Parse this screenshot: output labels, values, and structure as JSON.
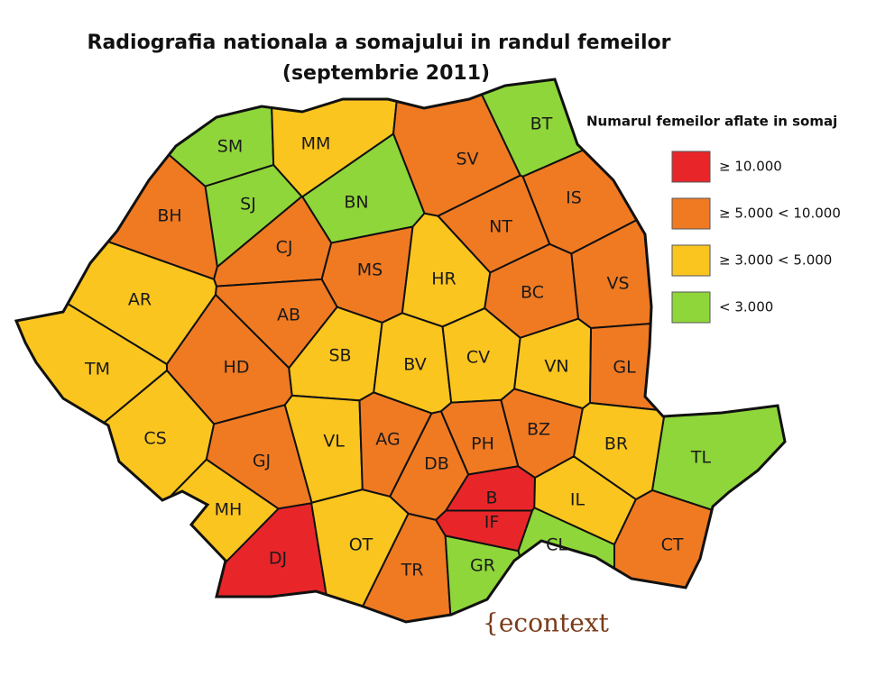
{
  "title": "Radiografia nationala a somajului in randul femeilor",
  "subtitle": "(septembrie 2011)",
  "legend": {
    "title": "Numarul femeilor aflate in somaj",
    "items": [
      {
        "label": "≥ 10.000",
        "color": "#e8262a"
      },
      {
        "label": "≥ 5.000 < 10.000",
        "color": "#f07a22"
      },
      {
        "label": "≥ 3.000 < 5.000",
        "color": "#fbc51f"
      },
      {
        "label": "< 3.000",
        "color": "#8fd63a"
      }
    ]
  },
  "counties": [
    {
      "code": "SM",
      "level": 3
    },
    {
      "code": "MM",
      "level": 2
    },
    {
      "code": "BT",
      "level": 3
    },
    {
      "code": "SV",
      "level": 1
    },
    {
      "code": "SJ",
      "level": 3
    },
    {
      "code": "BN",
      "level": 3
    },
    {
      "code": "BH",
      "level": 1
    },
    {
      "code": "CJ",
      "level": 1
    },
    {
      "code": "NT",
      "level": 1
    },
    {
      "code": "IS",
      "level": 1
    },
    {
      "code": "MS",
      "level": 1
    },
    {
      "code": "HR",
      "level": 2
    },
    {
      "code": "BC",
      "level": 1
    },
    {
      "code": "VS",
      "level": 1
    },
    {
      "code": "AR",
      "level": 2
    },
    {
      "code": "AB",
      "level": 1
    },
    {
      "code": "TM",
      "level": 2
    },
    {
      "code": "HD",
      "level": 1
    },
    {
      "code": "SB",
      "level": 2
    },
    {
      "code": "BV",
      "level": 2
    },
    {
      "code": "CV",
      "level": 2
    },
    {
      "code": "VN",
      "level": 2
    },
    {
      "code": "GL",
      "level": 1
    },
    {
      "code": "CS",
      "level": 2
    },
    {
      "code": "GJ",
      "level": 1
    },
    {
      "code": "VL",
      "level": 2
    },
    {
      "code": "AG",
      "level": 1
    },
    {
      "code": "DB",
      "level": 1
    },
    {
      "code": "PH",
      "level": 1
    },
    {
      "code": "BZ",
      "level": 1
    },
    {
      "code": "BR",
      "level": 2
    },
    {
      "code": "TL",
      "level": 3
    },
    {
      "code": "MH",
      "level": 2
    },
    {
      "code": "DJ",
      "level": 0
    },
    {
      "code": "OT",
      "level": 2
    },
    {
      "code": "TR",
      "level": 1
    },
    {
      "code": "GR",
      "level": 3
    },
    {
      "code": "B",
      "level": 0
    },
    {
      "code": "IF",
      "level": 0
    },
    {
      "code": "IL",
      "level": 2
    },
    {
      "code": "CL",
      "level": 3
    },
    {
      "code": "CT",
      "level": 1
    }
  ],
  "watermark": "{econtext"
}
